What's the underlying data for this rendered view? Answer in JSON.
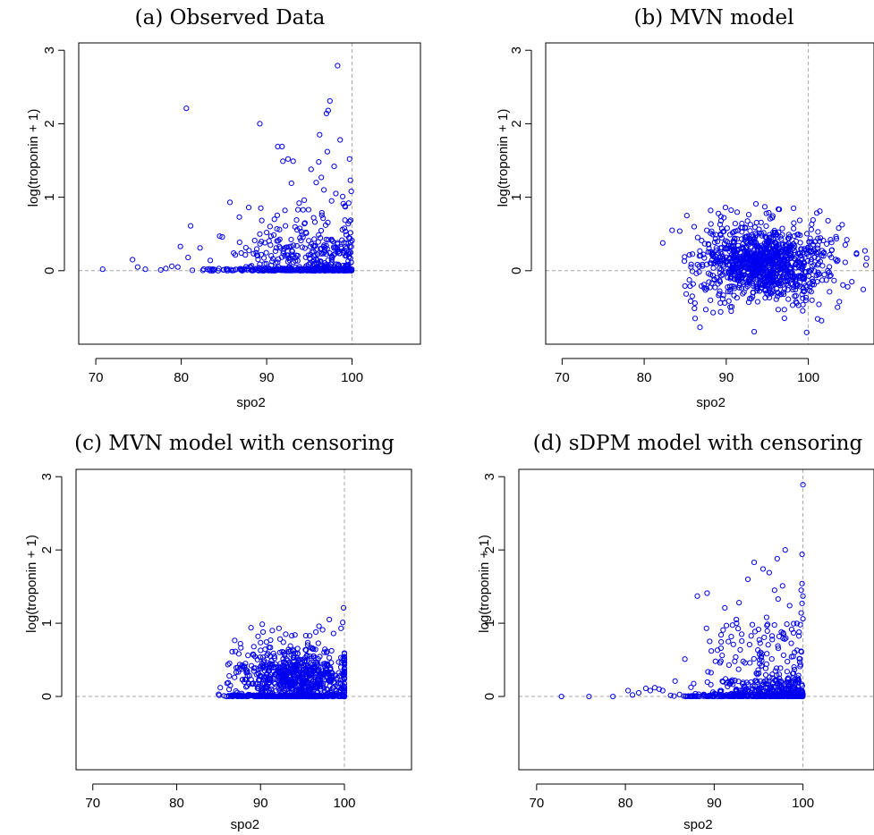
{
  "chart_data": [
    {
      "type": "scatter",
      "title": "(a) Observed Data",
      "xlabel": "spo2",
      "ylabel": "log(troponin + 1)",
      "xlim": [
        68,
        108
      ],
      "ylim": [
        -1,
        3.1
      ],
      "xticks": [
        "70",
        "80",
        "90",
        "100"
      ],
      "yticks": [
        "0",
        "1",
        "2",
        "3"
      ],
      "reference_lines": {
        "x": 100,
        "y": 0
      },
      "color": "#0000ee",
      "grid": false,
      "points": [
        [
          70.8,
          0.02
        ],
        [
          74.3,
          0.15
        ],
        [
          74.9,
          0.05
        ],
        [
          75.8,
          0.02
        ],
        [
          77.6,
          0.01
        ],
        [
          78.2,
          0.03
        ],
        [
          78.9,
          0.06
        ],
        [
          79.6,
          0.05
        ],
        [
          80.6,
          2.21
        ],
        [
          79.9,
          0.33
        ],
        [
          80.8,
          0.18
        ],
        [
          81.1,
          0.61
        ],
        [
          82.2,
          0.31
        ],
        [
          83.4,
          0.14
        ],
        [
          84.5,
          0.47
        ],
        [
          84.8,
          0.46
        ],
        [
          85.7,
          0.93
        ],
        [
          86.8,
          0.73
        ],
        [
          87.9,
          0.86
        ],
        [
          88.6,
          0.41
        ],
        [
          89.2,
          2.0
        ],
        [
          89.8,
          0.38
        ],
        [
          90.5,
          0.47
        ],
        [
          90.9,
          0.7
        ],
        [
          91.3,
          1.69
        ],
        [
          91.8,
          1.69
        ],
        [
          91.9,
          1.49
        ],
        [
          92.5,
          1.52
        ],
        [
          93.1,
          1.49
        ],
        [
          92.9,
          1.19
        ],
        [
          93.8,
          0.92
        ],
        [
          94.4,
          0.96
        ],
        [
          95.2,
          1.38
        ],
        [
          95.8,
          1.2
        ],
        [
          96.1,
          1.48
        ],
        [
          96.2,
          1.85
        ],
        [
          96.4,
          1.27
        ],
        [
          97.0,
          2.14
        ],
        [
          97.2,
          2.18
        ],
        [
          97.4,
          2.31
        ],
        [
          97.1,
          1.62
        ],
        [
          97.9,
          1.42
        ],
        [
          98.3,
          2.79
        ],
        [
          98.6,
          1.78
        ],
        [
          98.9,
          1.01
        ],
        [
          99.2,
          0.87
        ],
        [
          99.7,
          1.52
        ],
        [
          99.8,
          1.23
        ],
        [
          99.9,
          1.08
        ],
        [
          99.6,
          0.92
        ],
        [
          94.9,
          0.83
        ],
        [
          95.5,
          0.72
        ],
        [
          96.7,
          1.1
        ],
        [
          97.6,
          0.95
        ],
        [
          93.5,
          0.69
        ],
        [
          92.2,
          0.61
        ],
        [
          91.5,
          0.56
        ],
        [
          90.0,
          0.52
        ],
        [
          98.1,
          1.05
        ],
        [
          96.9,
          0.62
        ]
      ],
      "bulk": [
        {
          "x_range": [
            80.2,
            100
          ],
          "y_range": [
            0,
            0.03
          ],
          "n": 180,
          "skew": 1.8
        },
        {
          "x_range": [
            85,
            100
          ],
          "y_range": [
            0,
            0.45
          ],
          "n": 260,
          "skew": 2.4
        },
        {
          "x_range": [
            88,
            100
          ],
          "y_range": [
            0.2,
            0.95
          ],
          "n": 80,
          "skew": 1.6
        }
      ]
    },
    {
      "type": "scatter",
      "title": "(b) MVN model",
      "xlabel": "spo2",
      "ylabel": "log(troponin + 1)",
      "xlim": [
        68,
        108
      ],
      "ylim": [
        -1,
        3.1
      ],
      "xticks": [
        "70",
        "80",
        "90",
        "100"
      ],
      "yticks": [
        "0",
        "1",
        "2",
        "3"
      ],
      "reference_lines": {
        "x": 100,
        "y": 0
      },
      "color": "#0000ee",
      "grid": false,
      "points": [
        [
          83.4,
          0.55
        ],
        [
          85.2,
          0.75
        ],
        [
          86.2,
          -0.65
        ],
        [
          86.8,
          -0.77
        ],
        [
          88.1,
          0.82
        ],
        [
          89.9,
          0.86
        ],
        [
          94.7,
          0.87
        ],
        [
          98.2,
          0.85
        ],
        [
          101.4,
          0.81
        ],
        [
          104.7,
          0.42
        ],
        [
          106.9,
          0.27
        ],
        [
          107.1,
          0.17
        ],
        [
          105.3,
          -0.15
        ],
        [
          101.6,
          -0.68
        ],
        [
          99.8,
          -0.84
        ],
        [
          93.4,
          -0.83
        ],
        [
          90.6,
          -0.55
        ],
        [
          88.4,
          -0.57
        ],
        [
          85.7,
          0.05
        ],
        [
          85.6,
          -0.21
        ],
        [
          84.9,
          0.13
        ],
        [
          103.7,
          0.58
        ],
        [
          102.4,
          0.68
        ],
        [
          87.0,
          0.41
        ]
      ],
      "bulk": [
        {
          "x_center": 94.5,
          "x_sd": 3.9,
          "y_center": 0.1,
          "y_sd": 0.26,
          "n": 1100
        }
      ]
    },
    {
      "type": "scatter",
      "title": "(c) MVN model with censoring",
      "xlabel": "spo2",
      "ylabel": "log(troponin + 1)",
      "xlim": [
        68,
        108
      ],
      "ylim": [
        -1,
        3.1
      ],
      "xticks": [
        "70",
        "80",
        "90",
        "100"
      ],
      "yticks": [
        "0",
        "1",
        "2",
        "3"
      ],
      "reference_lines": {
        "x": 100,
        "y": 0
      },
      "color": "#0000ee",
      "grid": false,
      "points": [
        [
          85.0,
          0.03
        ],
        [
          85.2,
          0.12
        ],
        [
          86.0,
          0.18
        ],
        [
          86.4,
          0.15
        ],
        [
          87.1,
          0.33
        ],
        [
          87.6,
          0.72
        ],
        [
          88.2,
          0.45
        ],
        [
          88.5,
          0.56
        ],
        [
          89.7,
          0.82
        ],
        [
          90.3,
          0.88
        ],
        [
          91.4,
          0.9
        ],
        [
          92.2,
          0.93
        ],
        [
          93.0,
          0.85
        ],
        [
          94.1,
          0.84
        ],
        [
          95.4,
          0.83
        ],
        [
          96.6,
          0.88
        ],
        [
          97.4,
          0.91
        ],
        [
          98.2,
          1.05
        ],
        [
          98.7,
          0.86
        ],
        [
          99.8,
          1.01
        ],
        [
          99.9,
          1.21
        ],
        [
          99.6,
          0.93
        ],
        [
          89.2,
          0.68
        ],
        [
          86.9,
          0.26
        ]
      ],
      "bulk": [
        {
          "x_range": [
            85,
            100
          ],
          "y_range": [
            0,
            0.02
          ],
          "n": 190,
          "skew": 1.2
        },
        {
          "x_center": 94.5,
          "x_sd": 3.6,
          "y_center": 0.22,
          "y_sd": 0.22,
          "n": 820,
          "clip_x_max": 100,
          "clip_x_min": 85.5,
          "clip_y_min": 0
        }
      ]
    },
    {
      "type": "scatter",
      "title": "(d) sDPM model with censoring",
      "xlabel": "spo2",
      "ylabel": "log(troponin + 1)",
      "xlim": [
        68,
        108
      ],
      "ylim": [
        -1,
        3.1
      ],
      "xticks": [
        "70",
        "80",
        "90",
        "100"
      ],
      "yticks": [
        "0",
        "1",
        "2",
        "3"
      ],
      "reference_lines": {
        "x": 100,
        "y": 0
      },
      "color": "#0000ee",
      "grid": false,
      "points": [
        [
          72.8,
          0.0
        ],
        [
          75.9,
          0.0
        ],
        [
          78.6,
          0.0
        ],
        [
          80.3,
          0.08
        ],
        [
          80.8,
          0.02
        ],
        [
          81.5,
          0.05
        ],
        [
          82.3,
          0.11
        ],
        [
          82.8,
          0.08
        ],
        [
          83.3,
          0.12
        ],
        [
          83.8,
          0.1
        ],
        [
          84.2,
          0.08
        ],
        [
          85.6,
          0.21
        ],
        [
          86.7,
          0.51
        ],
        [
          88.1,
          1.37
        ],
        [
          89.2,
          1.41
        ],
        [
          91.2,
          1.21
        ],
        [
          92.8,
          1.28
        ],
        [
          93.8,
          1.6
        ],
        [
          94.5,
          1.83
        ],
        [
          95.5,
          1.74
        ],
        [
          96.2,
          1.69
        ],
        [
          97.1,
          1.88
        ],
        [
          97.7,
          1.51
        ],
        [
          98.0,
          2.0
        ],
        [
          98.5,
          1.24
        ],
        [
          99.9,
          1.94
        ],
        [
          100.0,
          2.89
        ],
        [
          99.9,
          1.54
        ],
        [
          99.8,
          1.45
        ],
        [
          100.0,
          1.37
        ],
        [
          99.9,
          1.27
        ],
        [
          99.8,
          1.14
        ],
        [
          100.0,
          1.06
        ],
        [
          99.7,
          0.98
        ],
        [
          97.2,
          1.33
        ],
        [
          95.9,
          1.08
        ],
        [
          94.3,
          0.98
        ],
        [
          93.1,
          0.85
        ],
        [
          91.6,
          0.75
        ],
        [
          90.9,
          0.56
        ],
        [
          92.5,
          1.05
        ],
        [
          96.8,
          1.45
        ]
      ],
      "bulk": [
        {
          "x_range": [
            84.5,
            100
          ],
          "y_range": [
            0,
            0.03
          ],
          "n": 200,
          "skew": 2.0
        },
        {
          "x_range": [
            86,
            100
          ],
          "y_range": [
            0,
            0.22
          ],
          "n": 260,
          "skew": 2.2
        },
        {
          "x_range": [
            89,
            100
          ],
          "y_range": [
            0.2,
            1.0
          ],
          "n": 130,
          "skew": 1.5
        }
      ]
    }
  ]
}
